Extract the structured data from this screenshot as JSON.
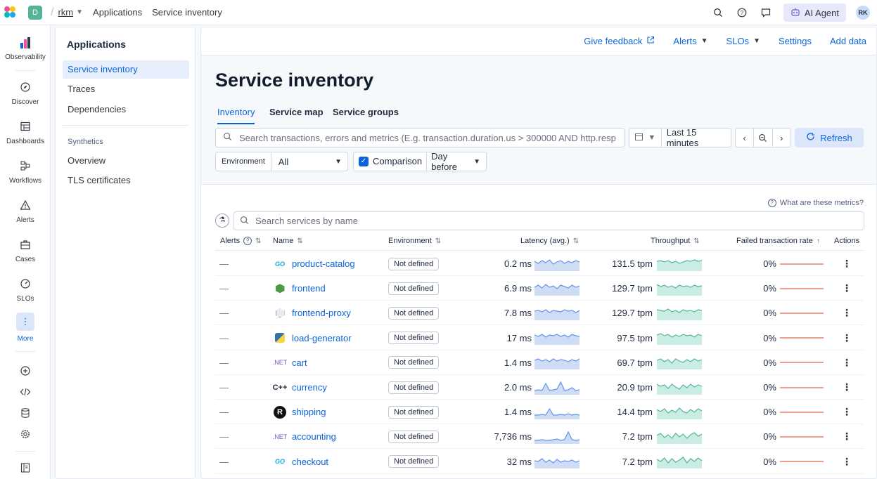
{
  "header": {
    "space_initial": "D",
    "breadcrumbs": [
      "rkm",
      "Applications",
      "Service inventory"
    ],
    "ai_agent_label": "AI Agent",
    "user_initials": "RK"
  },
  "rail": {
    "items": [
      {
        "label": "Observability",
        "icon": "observability-icon"
      },
      {
        "label": "Discover",
        "icon": "discover-icon"
      },
      {
        "label": "Dashboards",
        "icon": "dashboards-icon"
      },
      {
        "label": "Workflows",
        "icon": "workflows-icon"
      },
      {
        "label": "Alerts",
        "icon": "alerts-icon"
      },
      {
        "label": "Cases",
        "icon": "cases-icon"
      },
      {
        "label": "SLOs",
        "icon": "slos-icon"
      },
      {
        "label": "More",
        "icon": "more-icon"
      }
    ]
  },
  "subnav": {
    "title": "Applications",
    "items": [
      "Service inventory",
      "Traces",
      "Dependencies"
    ],
    "group_label": "Synthetics",
    "group_items": [
      "Overview",
      "TLS certificates"
    ]
  },
  "actions": {
    "feedback": "Give feedback",
    "alerts": "Alerts",
    "slos": "SLOs",
    "settings": "Settings",
    "add_data": "Add data"
  },
  "page": {
    "title": "Service inventory",
    "tabs": [
      "Inventory",
      "Service map",
      "Service groups"
    ],
    "search_placeholder": "Search transactions, errors and metrics (E.g. transaction.duration.us > 300000 AND http.resp",
    "time_range": "Last 15 minutes",
    "refresh_label": "Refresh",
    "environment_label": "Environment",
    "environment_value": "All",
    "comparison_label": "Comparison",
    "comparison_value": "Day before",
    "metrics_help": "What are these metrics?",
    "service_search_placeholder": "Search services by name"
  },
  "table": {
    "columns": {
      "alerts": "Alerts",
      "name": "Name",
      "environment": "Environment",
      "latency": "Latency (avg.)",
      "throughput": "Throughput",
      "failed": "Failed transaction rate",
      "actions": "Actions"
    },
    "rows": [
      {
        "alerts": "—",
        "icon": "go",
        "name": "product-catalog",
        "environment": "Not defined",
        "latency": "0.2 ms",
        "throughput": "131.5 tpm",
        "failed": "0%"
      },
      {
        "alerts": "—",
        "icon": "nodejs",
        "name": "frontend",
        "environment": "Not defined",
        "latency": "6.9 ms",
        "throughput": "129.7 tpm",
        "failed": "0%"
      },
      {
        "alerts": "—",
        "icon": "unknown",
        "name": "frontend-proxy",
        "environment": "Not defined",
        "latency": "7.8 ms",
        "throughput": "129.7 tpm",
        "failed": "0%"
      },
      {
        "alerts": "—",
        "icon": "python",
        "name": "load-generator",
        "environment": "Not defined",
        "latency": "17 ms",
        "throughput": "97.5 tpm",
        "failed": "0%"
      },
      {
        "alerts": "—",
        "icon": "dotnet",
        "name": "cart",
        "environment": "Not defined",
        "latency": "1.4 ms",
        "throughput": "69.7 tpm",
        "failed": "0%"
      },
      {
        "alerts": "—",
        "icon": "cpp",
        "name": "currency",
        "environment": "Not defined",
        "latency": "2.0 ms",
        "throughput": "20.9 tpm",
        "failed": "0%"
      },
      {
        "alerts": "—",
        "icon": "rust",
        "name": "shipping",
        "environment": "Not defined",
        "latency": "1.4 ms",
        "throughput": "14.4 tpm",
        "failed": "0%"
      },
      {
        "alerts": "—",
        "icon": "dotnet",
        "name": "accounting",
        "environment": "Not defined",
        "latency": "7,736 ms",
        "throughput": "7.2 tpm",
        "failed": "0%"
      },
      {
        "alerts": "—",
        "icon": "go",
        "name": "checkout",
        "environment": "Not defined",
        "latency": "32 ms",
        "throughput": "7.2 tpm",
        "failed": "0%"
      }
    ]
  },
  "icon_text": {
    "go": "GO",
    "dotnet": ".NET",
    "cpp": "C++",
    "rust": "R"
  },
  "colors": {
    "accent": "#0b64dd",
    "latency_spark": "#6092e6",
    "throughput_spark": "#54b399",
    "failed_line": "#e7664c"
  }
}
